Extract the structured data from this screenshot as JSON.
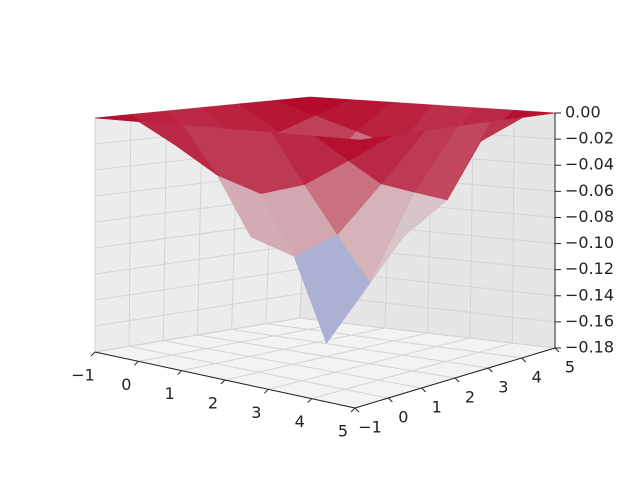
{
  "chart_data": {
    "type": "surface3d",
    "x": [
      -1,
      0,
      1,
      2,
      3,
      4,
      5
    ],
    "y": [
      -1,
      0,
      1,
      2,
      3,
      4,
      5
    ],
    "z": [
      [
        0,
        0,
        0,
        0,
        0,
        0,
        0
      ],
      [
        0,
        -0.02,
        -0.03,
        -0.03,
        -0.02,
        -0.01,
        0
      ],
      [
        0,
        -0.04,
        -0.09,
        -0.06,
        -0.05,
        -0.02,
        0
      ],
      [
        0,
        -0.05,
        -0.1,
        -0.17,
        -0.08,
        -0.03,
        0
      ],
      [
        0,
        -0.04,
        -0.08,
        -0.12,
        -0.09,
        -0.04,
        0
      ],
      [
        0,
        -0.02,
        -0.04,
        -0.05,
        -0.06,
        -0.02,
        0
      ],
      [
        0,
        0,
        0,
        0,
        0,
        0,
        0
      ]
    ],
    "colormap": [
      "#3b4cc0",
      "#dddddd",
      "#b40426"
    ],
    "xlim": [
      -1,
      5
    ],
    "ylim": [
      -1,
      5
    ],
    "zlim": [
      -0.18,
      0
    ],
    "xticks": [
      {
        "value": -1,
        "label": "−1"
      },
      0,
      1,
      2,
      3,
      4,
      5
    ],
    "yticks": [
      {
        "value": -1,
        "label": "−1"
      },
      0,
      1,
      2,
      3,
      4,
      5
    ],
    "zticks": [
      {
        "value": 0,
        "label": "0.00"
      },
      {
        "value": -0.02,
        "label": "−0.02"
      },
      {
        "value": -0.04,
        "label": "−0.04"
      },
      {
        "value": -0.06,
        "label": "−0.06"
      },
      {
        "value": -0.08,
        "label": "−0.08"
      },
      {
        "value": -0.1,
        "label": "−0.10"
      },
      {
        "value": -0.12,
        "label": "−0.12"
      },
      {
        "value": -0.14,
        "label": "−0.14"
      },
      {
        "value": -0.16,
        "label": "−0.16"
      },
      {
        "value": -0.18,
        "label": "−0.18"
      }
    ],
    "grid": true
  }
}
